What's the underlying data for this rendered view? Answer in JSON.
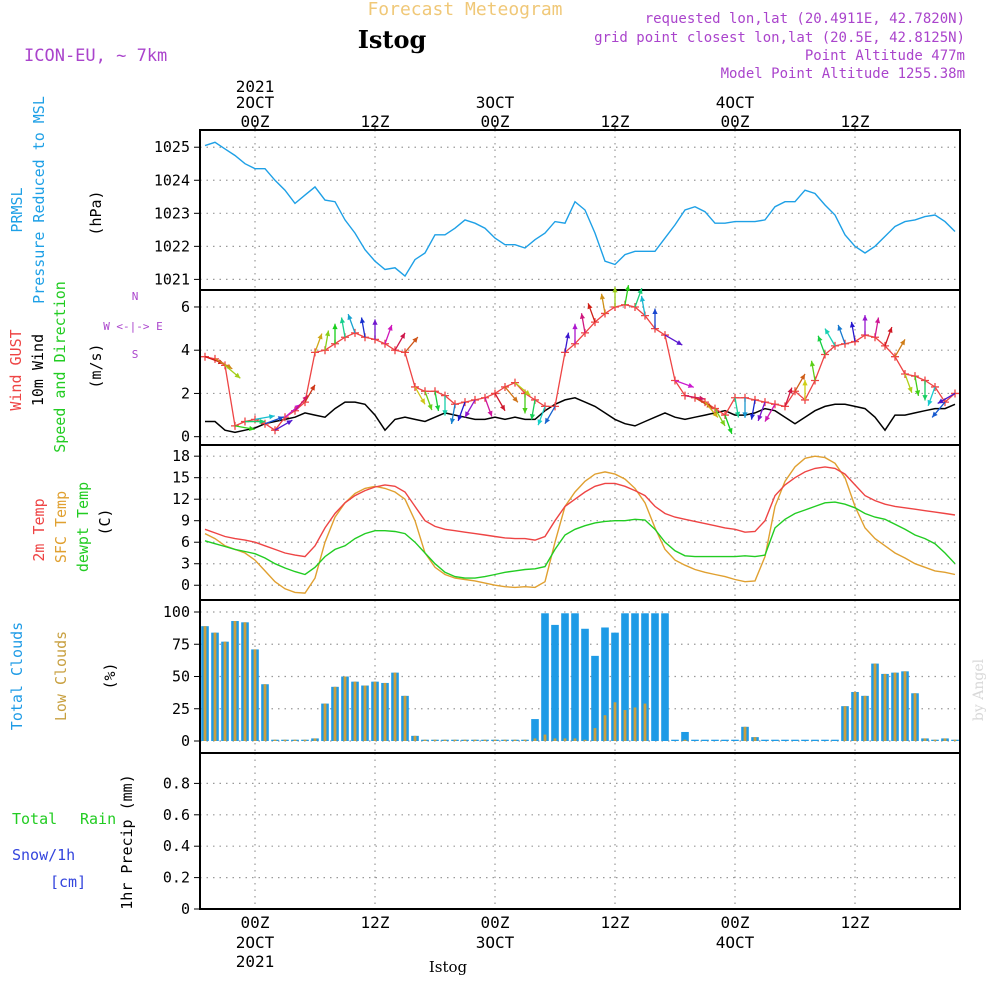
{
  "header": {
    "title": "Forecast Meteogram",
    "location": "Istog",
    "model": "ICON-EU, ~ 7km",
    "requested": "requested lon,lat (20.4911E, 42.7820N)",
    "gridpoint": "grid point closest lon,lat (20.5E, 42.8125N)",
    "point_alt": "Point Altitude 477m",
    "model_alt": "Model Point Altitude 1255.38m",
    "footer": "Istog",
    "watermark": "by Angel"
  },
  "time_axis": {
    "top": [
      {
        "hour": 0,
        "l1": "2021",
        "l2": "2OCT",
        "l3": "00Z"
      },
      {
        "hour": 12,
        "l1": "",
        "l2": "",
        "l3": "12Z"
      },
      {
        "hour": 24,
        "l1": "",
        "l2": "3OCT",
        "l3": "00Z"
      },
      {
        "hour": 36,
        "l1": "",
        "l2": "",
        "l3": "12Z"
      },
      {
        "hour": 48,
        "l1": "",
        "l2": "4OCT",
        "l3": "00Z"
      },
      {
        "hour": 60,
        "l1": "",
        "l2": "",
        "l3": "12Z"
      }
    ],
    "bottom": [
      {
        "hour": 0,
        "l1": "00Z",
        "l2": "2OCT",
        "l3": "2021"
      },
      {
        "hour": 12,
        "l1": "12Z",
        "l2": "",
        "l3": ""
      },
      {
        "hour": 24,
        "l1": "00Z",
        "l2": "3OCT",
        "l3": ""
      },
      {
        "hour": 36,
        "l1": "12Z",
        "l2": "",
        "l3": ""
      },
      {
        "hour": 48,
        "l1": "00Z",
        "l2": "4OCT",
        "l3": ""
      },
      {
        "hour": 60,
        "l1": "12Z",
        "l2": "",
        "l3": ""
      }
    ]
  },
  "panels": {
    "pressure": {
      "label1": "PRMSL",
      "label2": "Pressure Reduced to MSL",
      "unit": "(hPa)"
    },
    "wind": {
      "label1": "Wind GUST",
      "label2": "10m Wind",
      "label3": "Speed and Direction",
      "unit": "(m/s)",
      "compass_n": "N",
      "compass_s": "S",
      "compass_we": "W <-|-> E"
    },
    "temp": {
      "label1": "2m Temp",
      "label2": "SFC Temp",
      "label3": "dewpt Temp",
      "unit": "(C)"
    },
    "clouds": {
      "label1": "Total Clouds",
      "label2": "Low Clouds",
      "unit": "(%)"
    },
    "precip": {
      "label1": "Total",
      "label2": "Rain",
      "label3": "Snow/1h",
      "label4": "[cm]",
      "unit": "1hr Precip (mm)"
    }
  },
  "colors": {
    "pressure": "#1ea0e6",
    "gust": "#ee4444",
    "wind": "#000000",
    "temp2m": "#ee4444",
    "sfc": "#e0a030",
    "dewpt": "#22cc22",
    "total_clouds": "#1e9be6",
    "low_clouds": "#c8a040",
    "model_label": "#aa44cc",
    "title": "#f0c878"
  },
  "chart_data": [
    {
      "type": "line",
      "name": "pressure",
      "x_start_hour": -5,
      "x_step_hours": 1,
      "ylim": [
        1020.8,
        1025.4
      ],
      "yticks": [
        1021,
        1022,
        1023,
        1024,
        1025
      ],
      "values": [
        1025.05,
        1025.15,
        1024.95,
        1024.75,
        1024.5,
        1024.35,
        1024.35,
        1024.0,
        1023.7,
        1023.3,
        1023.55,
        1023.8,
        1023.4,
        1023.35,
        1022.8,
        1022.4,
        1021.9,
        1021.55,
        1021.3,
        1021.35,
        1021.1,
        1021.6,
        1021.8,
        1022.35,
        1022.35,
        1022.55,
        1022.8,
        1022.7,
        1022.55,
        1022.25,
        1022.05,
        1022.05,
        1021.95,
        1022.2,
        1022.4,
        1022.75,
        1022.7,
        1023.35,
        1023.1,
        1022.4,
        1021.55,
        1021.45,
        1021.75,
        1021.85,
        1021.85,
        1021.85,
        1022.25,
        1022.65,
        1023.1,
        1023.2,
        1023.05,
        1022.7,
        1022.7,
        1022.75,
        1022.75,
        1022.75,
        1022.8,
        1023.2,
        1023.35,
        1023.35,
        1023.7,
        1023.6,
        1023.25,
        1022.95,
        1022.35,
        1022.0,
        1021.8,
        1022.0,
        1022.3,
        1022.6,
        1022.75,
        1022.8,
        1022.9,
        1022.95,
        1022.75,
        1022.45
      ]
    },
    {
      "type": "line",
      "name": "wind",
      "x_start_hour": -5,
      "x_step_hours": 1,
      "ylim": [
        -0.2,
        6.6
      ],
      "yticks": [
        0,
        2,
        4,
        6
      ],
      "gust": [
        3.7,
        3.6,
        3.3,
        0.5,
        0.7,
        0.8,
        0.6,
        0.3,
        0.9,
        1.2,
        1.6,
        3.9,
        4.0,
        4.3,
        4.6,
        4.8,
        4.6,
        4.5,
        4.3,
        4.0,
        3.9,
        2.3,
        2.1,
        2.1,
        1.9,
        1.5,
        1.6,
        1.7,
        1.8,
        2.0,
        2.3,
        2.5,
        2.0,
        1.7,
        1.4,
        1.4,
        3.9,
        4.3,
        4.8,
        5.3,
        5.7,
        6.0,
        6.1,
        6.0,
        5.6,
        5.0,
        4.7,
        2.6,
        1.9,
        1.8,
        1.6,
        1.3,
        1.0,
        1.8,
        1.8,
        1.7,
        1.6,
        1.5,
        1.4,
        2.1,
        1.7,
        2.6,
        3.8,
        4.2,
        4.3,
        4.4,
        4.7,
        4.6,
        4.2,
        3.7,
        2.9,
        2.8,
        2.6,
        2.3,
        1.6,
        2.0
      ],
      "speed": [
        0.7,
        0.7,
        0.3,
        0.2,
        0.3,
        0.4,
        0.6,
        0.7,
        0.8,
        0.9,
        1.1,
        1.0,
        0.9,
        1.3,
        1.6,
        1.6,
        1.5,
        1.0,
        0.3,
        0.8,
        0.9,
        0.8,
        0.7,
        0.9,
        1.1,
        1.0,
        0.9,
        0.8,
        0.8,
        0.9,
        0.8,
        0.9,
        0.8,
        0.8,
        1.2,
        1.5,
        1.7,
        1.8,
        1.6,
        1.4,
        1.1,
        0.8,
        0.6,
        0.5,
        0.7,
        0.9,
        1.1,
        0.9,
        0.8,
        0.9,
        1.0,
        1.1,
        1.2,
        1.0,
        1.0,
        1.1,
        1.3,
        1.2,
        0.9,
        0.6,
        0.9,
        1.2,
        1.4,
        1.5,
        1.5,
        1.4,
        1.3,
        0.9,
        0.3,
        1.0,
        1.0,
        1.1,
        1.2,
        1.3,
        1.3,
        1.5
      ],
      "dir_deg": [
        290,
        300,
        310,
        280,
        270,
        260,
        250,
        240,
        230,
        220,
        210,
        200,
        190,
        180,
        170,
        160,
        170,
        180,
        200,
        210,
        220,
        330,
        340,
        350,
        0,
        10,
        20,
        30,
        340,
        330,
        320,
        310,
        0,
        10,
        20,
        30,
        190,
        180,
        170,
        160,
        170,
        180,
        190,
        200,
        170,
        180,
        300,
        290,
        280,
        300,
        320,
        330,
        340,
        350,
        0,
        10,
        20,
        30,
        200,
        210,
        180,
        170,
        160,
        150,
        160,
        170,
        180,
        190,
        200,
        210,
        340,
        350,
        0,
        20,
        40,
        60
      ]
    },
    {
      "type": "line",
      "name": "temperature",
      "x_start_hour": -5,
      "x_step_hours": 1,
      "ylim": [
        -1.5,
        19
      ],
      "yticks": [
        0,
        3,
        6,
        9,
        12,
        15,
        18
      ],
      "t2m": [
        7.8,
        7.3,
        6.8,
        6.5,
        6.3,
        6.0,
        5.5,
        5.0,
        4.5,
        4.2,
        4.0,
        5.5,
        8.0,
        10.0,
        11.5,
        12.5,
        13.2,
        13.7,
        14.0,
        13.8,
        13.0,
        11.0,
        9.0,
        8.2,
        7.8,
        7.6,
        7.4,
        7.2,
        7.0,
        6.8,
        6.6,
        6.5,
        6.5,
        6.3,
        6.8,
        9.0,
        11.0,
        12.0,
        13.0,
        13.8,
        14.2,
        14.2,
        13.8,
        13.2,
        12.5,
        11.0,
        10.0,
        9.5,
        9.2,
        8.9,
        8.6,
        8.3,
        8.0,
        7.8,
        7.4,
        7.5,
        9.0,
        12.5,
        14.0,
        15.0,
        15.8,
        16.3,
        16.5,
        16.3,
        15.5,
        14.0,
        12.5,
        11.8,
        11.3,
        11.0,
        10.8,
        10.6,
        10.4,
        10.2,
        10.0,
        9.8
      ],
      "sfc": [
        7.2,
        6.5,
        5.5,
        5.0,
        4.5,
        3.5,
        2.0,
        0.5,
        -0.5,
        -1.0,
        -1.1,
        1.0,
        6.0,
        9.5,
        11.5,
        12.8,
        13.5,
        13.8,
        13.5,
        13.0,
        12.0,
        9.0,
        4.5,
        2.5,
        1.5,
        1.0,
        0.8,
        0.6,
        0.3,
        0.0,
        -0.2,
        -0.3,
        -0.2,
        -0.3,
        0.5,
        6.0,
        11.0,
        13.0,
        14.5,
        15.5,
        15.8,
        15.5,
        14.8,
        13.5,
        11.5,
        8.0,
        5.0,
        3.5,
        2.8,
        2.2,
        1.8,
        1.5,
        1.2,
        0.8,
        0.5,
        0.6,
        4.0,
        11.0,
        14.5,
        16.5,
        17.7,
        18.0,
        17.8,
        17.0,
        15.0,
        11.0,
        8.0,
        6.5,
        5.5,
        4.5,
        3.8,
        3.0,
        2.5,
        2.0,
        1.8,
        1.5
      ],
      "dewpt": [
        6.2,
        5.8,
        5.4,
        5.0,
        4.7,
        4.4,
        3.8,
        3.0,
        2.4,
        1.9,
        1.5,
        2.5,
        4.0,
        5.0,
        5.5,
        6.5,
        7.2,
        7.6,
        7.6,
        7.5,
        7.2,
        6.0,
        4.5,
        3.0,
        1.8,
        1.2,
        1.0,
        1.0,
        1.2,
        1.5,
        1.8,
        2.0,
        2.2,
        2.3,
        2.6,
        5.0,
        7.0,
        7.8,
        8.3,
        8.7,
        8.9,
        9.0,
        9.0,
        9.2,
        9.1,
        7.8,
        6.0,
        4.8,
        4.1,
        4.0,
        4.0,
        4.0,
        4.0,
        4.0,
        4.1,
        4.0,
        4.2,
        8.0,
        9.2,
        10.0,
        10.5,
        11.0,
        11.5,
        11.6,
        11.3,
        10.8,
        10.0,
        9.5,
        9.2,
        8.5,
        7.8,
        7.0,
        6.5,
        5.8,
        4.5,
        3.0
      ]
    },
    {
      "type": "bar",
      "name": "clouds",
      "x_start_hour": -5,
      "x_step_hours": 1,
      "ylim": [
        0,
        100
      ],
      "yticks": [
        0,
        25,
        50,
        75,
        100
      ],
      "total": [
        89,
        84,
        77,
        93,
        92,
        71,
        44,
        1,
        1,
        1,
        1,
        2,
        29,
        42,
        50,
        46,
        43,
        46,
        45,
        53,
        35,
        4,
        1,
        1,
        1,
        1,
        1,
        1,
        1,
        1,
        1,
        1,
        1,
        17,
        99,
        90,
        99,
        99,
        87,
        66,
        88,
        84,
        99,
        99,
        99,
        99,
        99,
        1,
        7,
        1,
        1,
        1,
        1,
        1,
        11,
        3,
        1,
        1,
        1,
        1,
        1,
        1,
        1,
        1,
        27,
        38,
        35,
        60,
        52,
        53,
        54,
        37,
        2,
        1,
        2,
        1
      ],
      "low": [
        89,
        84,
        77,
        93,
        92,
        71,
        44,
        1,
        1,
        1,
        1,
        2,
        29,
        42,
        50,
        46,
        43,
        46,
        45,
        53,
        35,
        4,
        1,
        1,
        1,
        1,
        1,
        1,
        1,
        1,
        1,
        1,
        1,
        2,
        5,
        2,
        2,
        2,
        1,
        10,
        20,
        30,
        24,
        26,
        29,
        0,
        0,
        0,
        1,
        0,
        0,
        0,
        0,
        0,
        11,
        3,
        0,
        0,
        0,
        0,
        0,
        0,
        0,
        0,
        27,
        38,
        35,
        60,
        52,
        53,
        54,
        37,
        2,
        1,
        2,
        1
      ]
    },
    {
      "type": "bar",
      "name": "precipitation",
      "ylim": [
        0,
        1
      ],
      "yticks": [
        0,
        0.2,
        0.4,
        0.6,
        0.8
      ],
      "ytick_labels": [
        "0",
        "0.2",
        "0.4",
        "0.6",
        "0.8"
      ],
      "values": []
    }
  ]
}
